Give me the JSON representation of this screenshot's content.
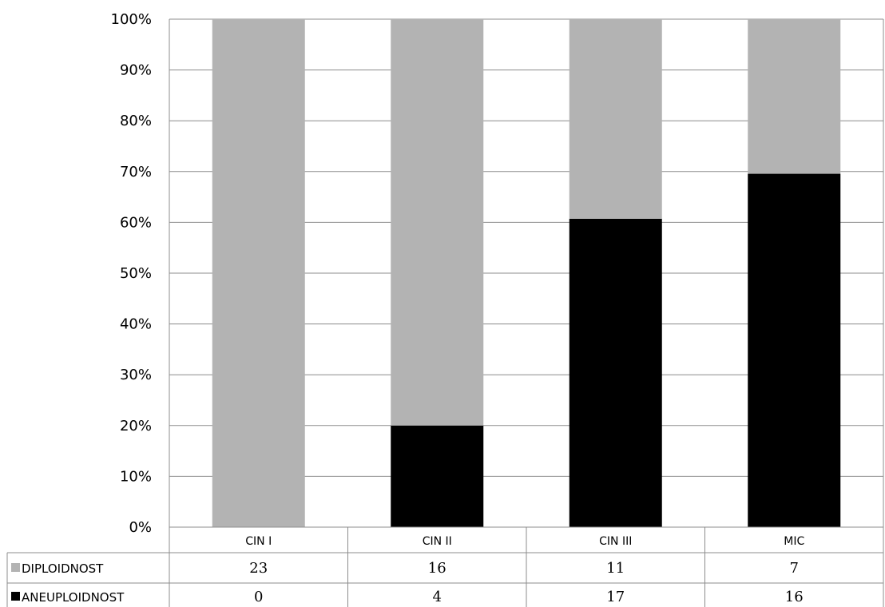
{
  "chart_data": {
    "type": "bar",
    "stacked": true,
    "normalized_percent": true,
    "categories": [
      "CIN I",
      "CIN II",
      "CIN III",
      "MIC"
    ],
    "series": [
      {
        "name": "ANEUPLOIDNOST",
        "color": "#000000",
        "values": [
          0,
          4,
          17,
          16
        ]
      },
      {
        "name": "DIPLOIDNOST",
        "color": "#b3b3b3",
        "values": [
          23,
          16,
          11,
          7
        ]
      }
    ],
    "table_rows": [
      {
        "name": "DIPLOIDNOST",
        "color": "#b3b3b3",
        "values": [
          "23",
          "16",
          "11",
          "7"
        ]
      },
      {
        "name": "ANEUPLOIDNOST",
        "color": "#000000",
        "values": [
          "0",
          "4",
          "17",
          "16"
        ]
      }
    ],
    "yticks": [
      "0%",
      "10%",
      "20%",
      "30%",
      "40%",
      "50%",
      "60%",
      "70%",
      "80%",
      "90%",
      "100%"
    ],
    "ylim": [
      0,
      100
    ],
    "grid": true,
    "legend": "data-table"
  }
}
